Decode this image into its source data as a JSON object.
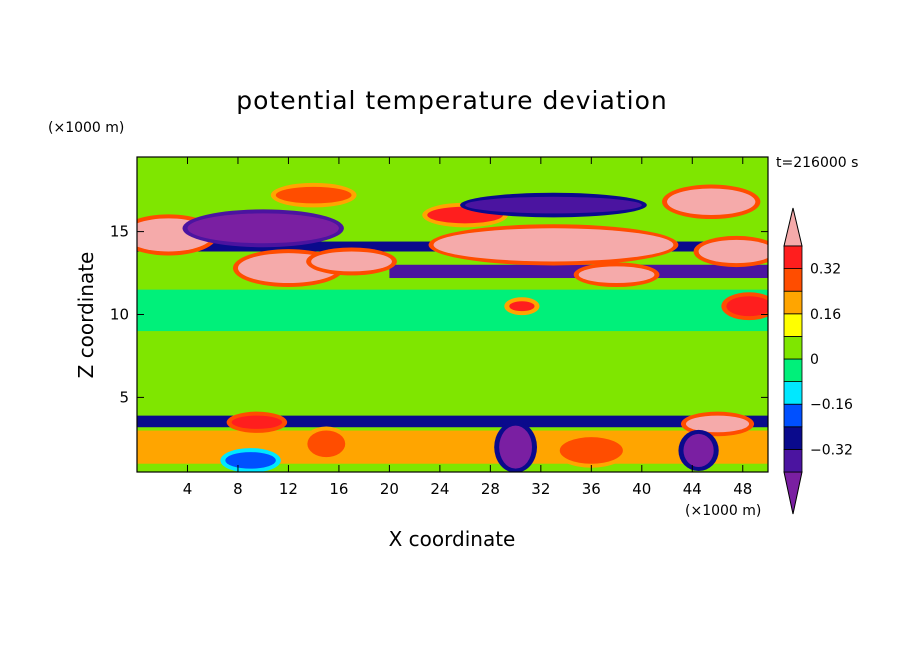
{
  "chart_data": {
    "type": "heatmap",
    "title": "potential temperature deviation",
    "xlabel": "X coordinate",
    "ylabel": "Z coordinate",
    "x_unit": "(×1000 m)",
    "y_unit": "(×1000 m)",
    "time_label": "t=216000 s",
    "xlim": [
      0,
      50
    ],
    "ylim": [
      0.5,
      19.5
    ],
    "x_ticks": [
      4,
      8,
      12,
      16,
      20,
      24,
      28,
      32,
      36,
      40,
      44,
      48
    ],
    "y_ticks": [
      5,
      10,
      15
    ],
    "colorbar": {
      "levels": [
        -0.4,
        -0.32,
        -0.24,
        -0.16,
        -0.08,
        0,
        0.08,
        0.16,
        0.24,
        0.32,
        0.4
      ],
      "tick_labels": [
        "0.32",
        "0.16",
        "0",
        "−0.16",
        "−0.32"
      ],
      "tick_values": [
        0.32,
        0.16,
        0,
        -0.16,
        -0.32
      ],
      "colors": [
        "#7a1fa2",
        "#4b14a0",
        "#0a0a8c",
        "#0050ff",
        "#00e8ff",
        "#00f07a",
        "#7fe600",
        "#ffff00",
        "#ffa500",
        "#ff4d00",
        "#ff1e1e",
        "#f5aaaa"
      ]
    },
    "bands": [
      {
        "z": [
          16.8,
          17.6
        ],
        "x": [
          0,
          50
        ],
        "level": 0.04
      },
      {
        "z": [
          13.8,
          14.4
        ],
        "x": [
          0,
          50
        ],
        "level": -0.3
      },
      {
        "z": [
          12.2,
          13.0
        ],
        "x": [
          20,
          50
        ],
        "level": -0.32
      },
      {
        "z": [
          9.0,
          11.5
        ],
        "x": [
          0,
          50
        ],
        "level": -0.02
      },
      {
        "z": [
          3.2,
          3.9
        ],
        "x": [
          0,
          50
        ],
        "level": -0.3
      },
      {
        "z": [
          1.0,
          3.0
        ],
        "x": [
          0,
          50
        ],
        "level": 0.2
      }
    ],
    "blobs": [
      {
        "x": 2.5,
        "z": 14.8,
        "rx": 3.5,
        "rz": 1.0,
        "level": 0.44
      },
      {
        "x": 10,
        "z": 15.2,
        "rx": 6,
        "rz": 0.9,
        "level": -0.44
      },
      {
        "x": 12,
        "z": 12.8,
        "rx": 4,
        "rz": 0.9,
        "level": 0.44
      },
      {
        "x": 17,
        "z": 13.2,
        "rx": 3.2,
        "rz": 0.6,
        "level": 0.42
      },
      {
        "x": 26,
        "z": 16.0,
        "rx": 3,
        "rz": 0.5,
        "level": 0.34
      },
      {
        "x": 33,
        "z": 14.2,
        "rx": 9.5,
        "rz": 1.0,
        "level": 0.44
      },
      {
        "x": 33,
        "z": 16.6,
        "rx": 7,
        "rz": 0.5,
        "level": -0.36
      },
      {
        "x": 38,
        "z": 12.4,
        "rx": 3,
        "rz": 0.5,
        "level": 0.42
      },
      {
        "x": 45.5,
        "z": 16.8,
        "rx": 3.5,
        "rz": 0.8,
        "level": 0.44
      },
      {
        "x": 47.5,
        "z": 13.8,
        "rx": 3,
        "rz": 0.7,
        "level": 0.44
      },
      {
        "x": 14,
        "z": 17.2,
        "rx": 3,
        "rz": 0.5,
        "level": 0.28
      },
      {
        "x": 48.5,
        "z": 10.5,
        "rx": 1.8,
        "rz": 0.6,
        "level": 0.4
      },
      {
        "x": 9.5,
        "z": 3.5,
        "rx": 2,
        "rz": 0.4,
        "level": 0.4
      },
      {
        "x": 46,
        "z": 3.4,
        "rx": 2.5,
        "rz": 0.5,
        "level": 0.44
      },
      {
        "x": 30,
        "z": 2.0,
        "rx": 1.3,
        "rz": 1.3,
        "level": -0.4
      },
      {
        "x": 44.5,
        "z": 1.8,
        "rx": 1.2,
        "rz": 1.0,
        "level": -0.4
      },
      {
        "x": 9,
        "z": 1.2,
        "rx": 2,
        "rz": 0.5,
        "level": -0.2
      },
      {
        "x": 15,
        "z": 2.2,
        "rx": 1.5,
        "rz": 0.8,
        "level": 0.32
      },
      {
        "x": 36,
        "z": 1.8,
        "rx": 2.5,
        "rz": 0.8,
        "level": 0.32
      },
      {
        "x": 30.5,
        "z": 10.5,
        "rx": 1,
        "rz": 0.3,
        "level": 0.36
      }
    ]
  }
}
